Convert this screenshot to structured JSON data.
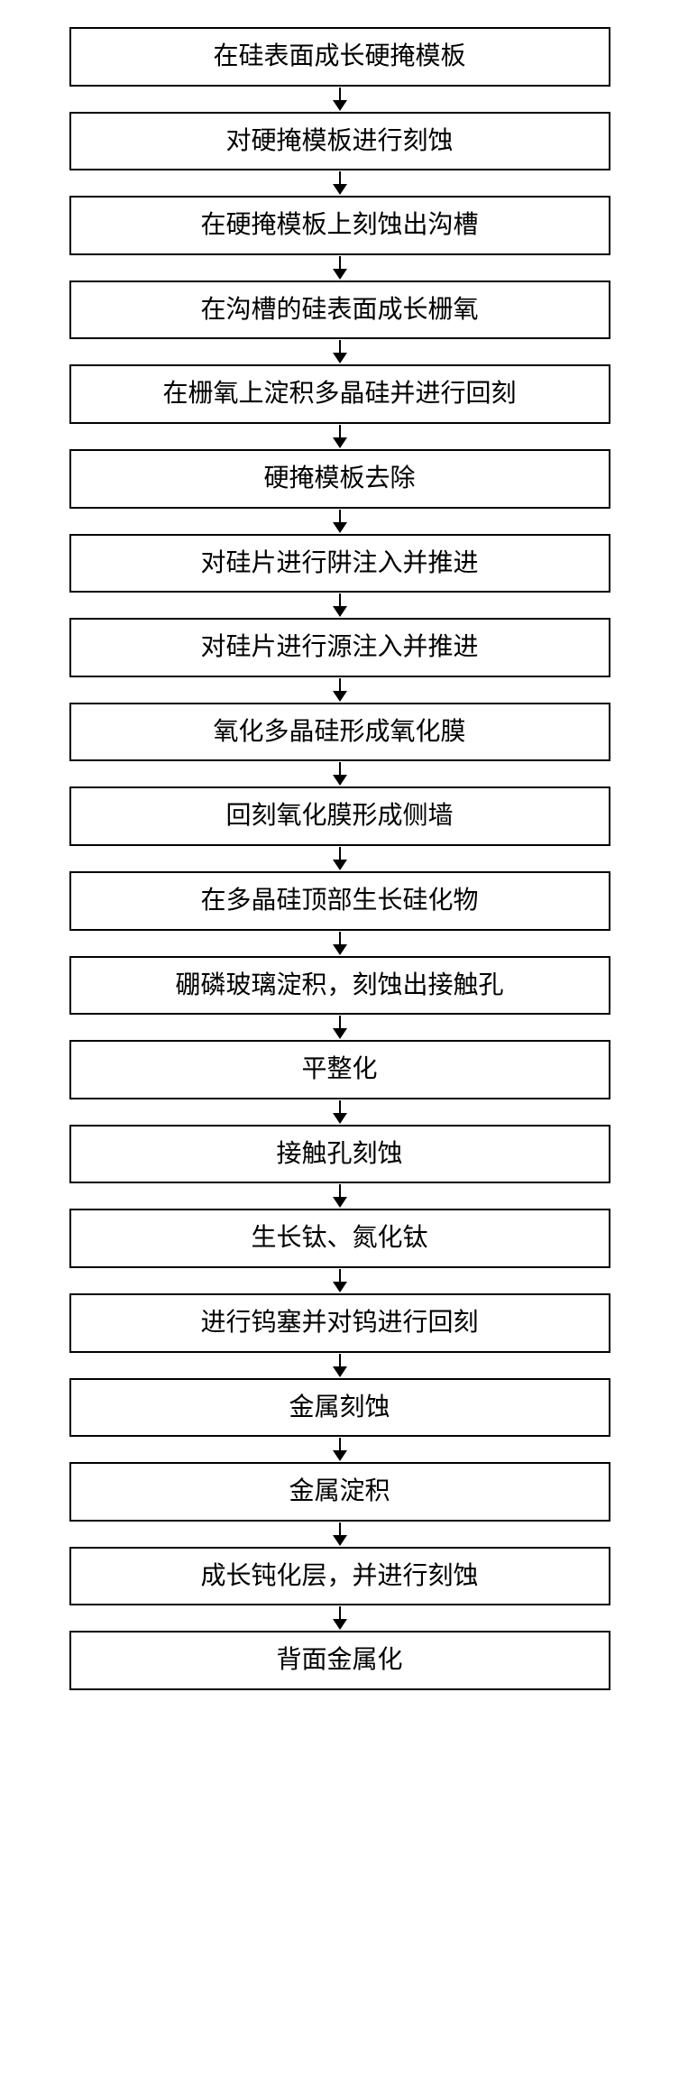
{
  "flowchart": {
    "type": "flowchart",
    "direction": "vertical",
    "background_color": "#ffffff",
    "box_border_color": "#000000",
    "box_border_width": 2,
    "box_background_color": "#ffffff",
    "text_color": "#000000",
    "font_size": 28,
    "font_family": "SimSun",
    "arrow_color": "#000000",
    "arrow_head_size": 12,
    "steps": [
      {
        "id": "step-1",
        "label": "在硅表面成长硬掩模板"
      },
      {
        "id": "step-2",
        "label": "对硬掩模板进行刻蚀"
      },
      {
        "id": "step-3",
        "label": "在硬掩模板上刻蚀出沟槽"
      },
      {
        "id": "step-4",
        "label": "在沟槽的硅表面成长栅氧"
      },
      {
        "id": "step-5",
        "label": "在栅氧上淀积多晶硅并进行回刻"
      },
      {
        "id": "step-6",
        "label": "硬掩模板去除"
      },
      {
        "id": "step-7",
        "label": "对硅片进行阱注入并推进"
      },
      {
        "id": "step-8",
        "label": "对硅片进行源注入并推进"
      },
      {
        "id": "step-9",
        "label": "氧化多晶硅形成氧化膜"
      },
      {
        "id": "step-10",
        "label": "回刻氧化膜形成侧墙"
      },
      {
        "id": "step-11",
        "label": "在多晶硅顶部生长硅化物"
      },
      {
        "id": "step-12",
        "label": "硼磷玻璃淀积，刻蚀出接触孔"
      },
      {
        "id": "step-13",
        "label": "平整化"
      },
      {
        "id": "step-14",
        "label": "接触孔刻蚀"
      },
      {
        "id": "step-15",
        "label": "生长钛、氮化钛"
      },
      {
        "id": "step-16",
        "label": "进行钨塞并对钨进行回刻"
      },
      {
        "id": "step-17",
        "label": "金属刻蚀"
      },
      {
        "id": "step-18",
        "label": "金属淀积"
      },
      {
        "id": "step-19",
        "label": "成长钝化层，并进行刻蚀"
      },
      {
        "id": "step-20",
        "label": "背面金属化"
      }
    ]
  }
}
